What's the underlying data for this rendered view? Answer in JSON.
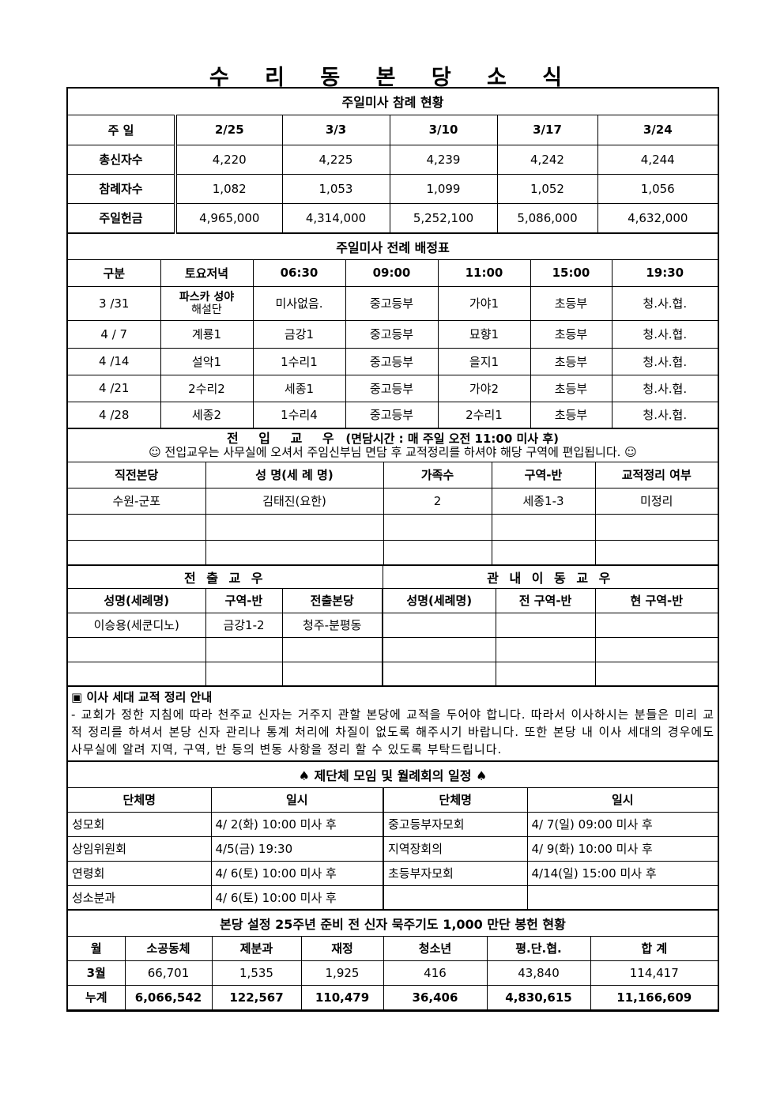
{
  "title": "수 리 동 본 당 소 식",
  "attendance": {
    "title": "주일미사 참례 현황",
    "header": [
      "주 일",
      "2/25",
      "3/3",
      "3/10",
      "3/17",
      "3/24"
    ],
    "rows": [
      [
        "총신자수",
        "4,220",
        "4,225",
        "4,239",
        "4,242",
        "4,244"
      ],
      [
        "참례자수",
        "1,082",
        "1,053",
        "1,099",
        "1,052",
        "1,056"
      ],
      [
        "주일헌금",
        "4,965,000",
        "4,314,000",
        "5,252,100",
        "5,086,000",
        "4,632,000"
      ]
    ]
  },
  "schedule": {
    "title": "주일미사 전례 배정표",
    "header": [
      "구분",
      "토요저녁",
      "06:30",
      "09:00",
      "11:00",
      "15:00",
      "19:30"
    ],
    "first_row": {
      "date": "3 /31",
      "sat_line1": "파스카 성야",
      "sat_line2": "해설단",
      "cells": [
        "미사없음.",
        "중고등부",
        "가야1",
        "초등부",
        "청.사.협."
      ]
    },
    "rows": [
      [
        "4 / 7",
        "계룡1",
        "금강1",
        "중고등부",
        "묘향1",
        "초등부",
        "청.사.협."
      ],
      [
        "4 /14",
        "설악1",
        "1수리1",
        "중고등부",
        "을지1",
        "초등부",
        "청.사.협."
      ],
      [
        "4 /21",
        "2수리2",
        "세종1",
        "중고등부",
        "가야2",
        "초등부",
        "청.사.협."
      ],
      [
        "4 /28",
        "세종2",
        "1수리4",
        "중고등부",
        "2수리1",
        "초등부",
        "청.사.협."
      ]
    ]
  },
  "incoming": {
    "title": "전 입 교 우",
    "title_note": "(면담시간 : 매 주일 오전 11:00 미사 후)",
    "subtitle": "☺ 전입교우는 사무실에 오셔서 주임신부님 면담 후 교적정리를 하셔야 해당 구역에 편입됩니다. ☺",
    "header": [
      "직전본당",
      "성 명(세 례 명)",
      "가족수",
      "구역-반",
      "교적정리 여부"
    ],
    "rows": [
      [
        "수원-군포",
        "김태진(요한)",
        "2",
        "세종1-3",
        "미정리"
      ],
      [
        "",
        "",
        "",
        "",
        ""
      ],
      [
        "",
        "",
        "",
        "",
        ""
      ]
    ]
  },
  "outgoing": {
    "title": "전 출 교 우",
    "header": [
      "성명(세례명)",
      "구역-반",
      "전출본당"
    ],
    "rows": [
      [
        "이승용(세쿤디노)",
        "금강1-2",
        "청주-분평동"
      ],
      [
        "",
        "",
        ""
      ],
      [
        "",
        "",
        ""
      ]
    ]
  },
  "internal_move": {
    "title": "관 내 이 동 교 우",
    "header": [
      "성명(세례명)",
      "전 구역-반",
      "현 구역-반"
    ],
    "rows": [
      [
        "",
        "",
        ""
      ],
      [
        "",
        "",
        ""
      ],
      [
        "",
        "",
        ""
      ]
    ]
  },
  "notice": {
    "title": "▣ 이사 세대 교적 정리 안내",
    "body": "- 교회가 정한 지침에 따라 천주교 신자는 거주지 관할 본당에 교적을 두어야 합니다. 따라서 이사하시는 분들은 미리 교적 정리를 하셔서 본당 신자 관리나 통계 처리에 차질이 없도록 해주시기 바랍니다. 또한 본당 내 이사 세대의 경우에도 사무실에 알려 지역, 구역, 반 등의 변동 사항을 정리 할 수 있도록 부탁드립니다."
  },
  "meetings": {
    "title": "♠ 제단체 모임 및 월례회의 일정 ♠",
    "header": [
      "단체명",
      "일시",
      "단체명",
      "일시"
    ],
    "rows": [
      [
        "성모회",
        "4/ 2(화) 10:00 미사 후",
        "중고등부자모회",
        "4/ 7(일) 09:00 미사 후"
      ],
      [
        "상임위원회",
        "4/5(금) 19:30",
        "지역장회의",
        "4/ 9(화) 10:00 미사 후"
      ],
      [
        "연령회",
        "4/ 6(토) 10:00 미사 후",
        "초등부자모회",
        "4/14(일) 15:00 미사 후"
      ],
      [
        "성소분과",
        "4/ 6(토) 10:00 미사 후",
        "",
        ""
      ]
    ]
  },
  "offering": {
    "title": "본당 설정 25주년 준비 전 신자 묵주기도 1,000 만단 봉헌 현황",
    "header": [
      "월",
      "소공동체",
      "제분과",
      "재정",
      "청소년",
      "평.단.협.",
      "합 계"
    ],
    "rows": [
      [
        "3월",
        "66,701",
        "1,535",
        "1,925",
        "416",
        "43,840",
        "114,417"
      ],
      [
        "누계",
        "6,066,542",
        "122,567",
        "110,479",
        "36,406",
        "4,830,615",
        "11,166,609"
      ]
    ]
  }
}
